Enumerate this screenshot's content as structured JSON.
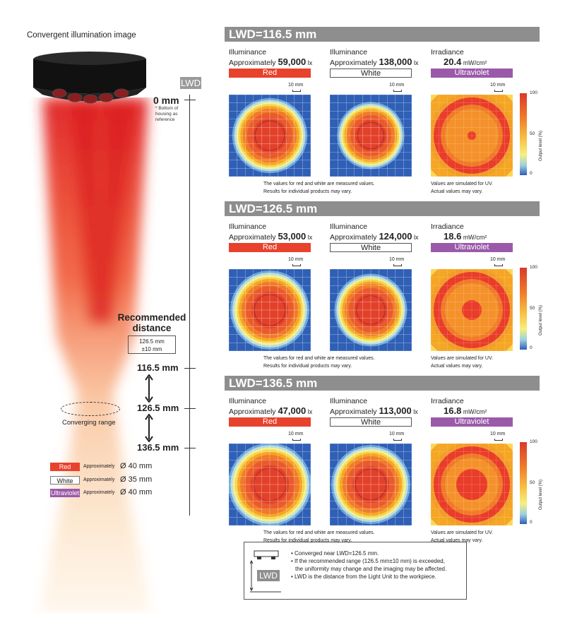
{
  "left": {
    "title": "Convergent illumination image",
    "lwd_tag": "LWD",
    "zero_label": "0 mm",
    "zero_note": [
      "* Bottom of",
      "housing as",
      "reference"
    ],
    "recommended_title": [
      "Recommended",
      "distance"
    ],
    "recommended_value": [
      "126.5 mm",
      "±10 mm"
    ],
    "distances": [
      "116.5 mm",
      "126.5 mm",
      "136.5 mm"
    ],
    "converging_label": "Converging range",
    "legend": [
      {
        "tag": "Red",
        "approx": "Approximately",
        "dia": "Ø 40 mm",
        "color": "#e8412c",
        "text_color": "#ffffff"
      },
      {
        "tag": "White",
        "approx": "Approximately",
        "dia": "Ø 35 mm",
        "color": "#ffffff",
        "text_color": "#222222"
      },
      {
        "tag": "Ultraviolet",
        "approx": "Approximately",
        "dia": "Ø 40 mm",
        "color": "#9b5aa9",
        "text_color": "#ffffff"
      }
    ]
  },
  "sections": [
    {
      "header": "LWD=116.5 mm",
      "cols": [
        {
          "line1": "Illuminance",
          "prefix": "Approximately ",
          "value": "59,000",
          "unit": " lx",
          "bar": "Red",
          "scale": "10 mm"
        },
        {
          "line1": "Illuminance",
          "prefix": "Approximately ",
          "value": "138,000",
          "unit": " lx",
          "bar": "White",
          "scale": "10 mm"
        },
        {
          "line1": "Irradiance",
          "prefix": "",
          "value": "20.4",
          "unit": " mW/cm²",
          "bar": "Ultraviolet",
          "scale": "10 mm"
        }
      ],
      "note_left": [
        "The values for red and white are measured values.",
        "Results for individual products may vary."
      ],
      "note_right": [
        "Values are simulated for UV.",
        "Actual values may vary."
      ]
    },
    {
      "header": "LWD=126.5 mm",
      "cols": [
        {
          "line1": "Illuminance",
          "prefix": "Approximately ",
          "value": "53,000",
          "unit": " lx",
          "bar": "Red",
          "scale": "10 mm"
        },
        {
          "line1": "Illuminance",
          "prefix": "Approximately ",
          "value": "124,000",
          "unit": " lx",
          "bar": "White",
          "scale": "10 mm"
        },
        {
          "line1": "Irradiance",
          "prefix": "",
          "value": "18.6",
          "unit": " mW/cm²",
          "bar": "Ultraviolet",
          "scale": "10 mm"
        }
      ],
      "note_left": [
        "The values for red and white are measured values.",
        "Results for individual products may vary."
      ],
      "note_right": [
        "Values are simulated for UV.",
        "Actual values may vary."
      ]
    },
    {
      "header": "LWD=136.5 mm",
      "cols": [
        {
          "line1": "Illuminance",
          "prefix": "Approximately ",
          "value": "47,000",
          "unit": " lx",
          "bar": "Red",
          "scale": "10 mm"
        },
        {
          "line1": "Illuminance",
          "prefix": "Approximately ",
          "value": "113,000",
          "unit": " lx",
          "bar": "White",
          "scale": "10 mm"
        },
        {
          "line1": "Irradiance",
          "prefix": "",
          "value": "16.8",
          "unit": " mW/cm²",
          "bar": "Ultraviolet",
          "scale": "10 mm"
        }
      ],
      "note_left": [
        "The values for red and white are measured values.",
        "Results for individual products may vary."
      ],
      "note_right": [
        "Values are simulated for UV.",
        "Actual values may vary."
      ]
    }
  ],
  "colorbar": {
    "title": "Output level (%)",
    "ticks": [
      "100",
      "50",
      "0"
    ]
  },
  "notes_box": {
    "lwd_label": "LWD",
    "lines": [
      "• Converged near LWD=126.5 mm.",
      "• If the recommended range (126.5 mm±10 mm) is exceeded,",
      "  the uniformity may change and the imaging may be affected.",
      "• LWD is the distance from the Light Unit to the workpiece."
    ]
  },
  "colors": {
    "red": "#e8412c",
    "uv": "#9b5aa9",
    "header_gray": "#8e8e8e",
    "map_blue": "#2f5fb6"
  }
}
